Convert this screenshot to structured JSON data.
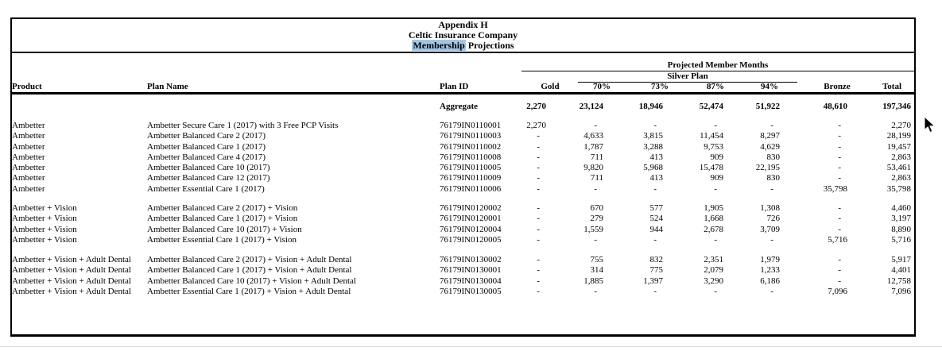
{
  "title": {
    "line1": "Appendix H",
    "line2": "Celtic Insurance Company",
    "line3_highlight": "Membership",
    "line3_rest": "Projections"
  },
  "colors": {
    "highlight": "#a4c6e4",
    "border": "#000000"
  },
  "header": {
    "projected_label": "Projected Member Months",
    "silver_label": "Silver Plan",
    "columns": [
      "Product",
      "Plan Name",
      "Plan ID",
      "Gold",
      "70%",
      "73%",
      "87%",
      "94%",
      "Bronze",
      "Total"
    ]
  },
  "aggregate": {
    "label": "Aggregate",
    "values": [
      "2,270",
      "23,124",
      "18,946",
      "52,474",
      "51,922",
      "48,610",
      "197,346"
    ]
  },
  "groups": [
    {
      "rows": [
        {
          "product": "Ambetter",
          "plan_name": "Ambetter Secure Care 1 (2017) with 3 Free PCP Visits",
          "plan_id": "76179IN0110001",
          "values": [
            "2,270",
            "-",
            "-",
            "-",
            "-",
            "-",
            "2,270"
          ]
        },
        {
          "product": "Ambetter",
          "plan_name": "Ambetter Balanced Care 2 (2017)",
          "plan_id": "76179IN0110003",
          "values": [
            "-",
            "4,633",
            "3,815",
            "11,454",
            "8,297",
            "-",
            "28,199"
          ]
        },
        {
          "product": "Ambetter",
          "plan_name": "Ambetter Balanced Care 1 (2017)",
          "plan_id": "76179IN0110002",
          "values": [
            "-",
            "1,787",
            "3,288",
            "9,753",
            "4,629",
            "-",
            "19,457"
          ]
        },
        {
          "product": "Ambetter",
          "plan_name": "Ambetter Balanced Care 4 (2017)",
          "plan_id": "76179IN0110008",
          "values": [
            "-",
            "711",
            "413",
            "909",
            "830",
            "-",
            "2,863"
          ]
        },
        {
          "product": "Ambetter",
          "plan_name": "Ambetter Balanced Care 10 (2017)",
          "plan_id": "76179IN0110005",
          "values": [
            "-",
            "9,820",
            "5,968",
            "15,478",
            "22,195",
            "-",
            "53,461"
          ]
        },
        {
          "product": "Ambetter",
          "plan_name": "Ambetter Balanced Care 12 (2017)",
          "plan_id": "76179IN0110009",
          "values": [
            "-",
            "711",
            "413",
            "909",
            "830",
            "-",
            "2,863"
          ]
        },
        {
          "product": "Ambetter",
          "plan_name": "Ambetter Essential Care 1 (2017)",
          "plan_id": "76179IN0110006",
          "values": [
            "-",
            "-",
            "-",
            "-",
            "-",
            "35,798",
            "35,798"
          ]
        }
      ]
    },
    {
      "rows": [
        {
          "product": "Ambetter + Vision",
          "plan_name": "Ambetter Balanced Care 2 (2017) + Vision",
          "plan_id": "76179IN0120002",
          "values": [
            "-",
            "670",
            "577",
            "1,905",
            "1,308",
            "-",
            "4,460"
          ]
        },
        {
          "product": "Ambetter + Vision",
          "plan_name": "Ambetter Balanced Care 1 (2017) + Vision",
          "plan_id": "76179IN0120001",
          "values": [
            "-",
            "279",
            "524",
            "1,668",
            "726",
            "-",
            "3,197"
          ]
        },
        {
          "product": "Ambetter + Vision",
          "plan_name": "Ambetter Balanced Care 10 (2017) + Vision",
          "plan_id": "76179IN0120004",
          "values": [
            "-",
            "1,559",
            "944",
            "2,678",
            "3,709",
            "-",
            "8,890"
          ]
        },
        {
          "product": "Ambetter + Vision",
          "plan_name": "Ambetter Essential Care 1 (2017) + Vision",
          "plan_id": "76179IN0120005",
          "values": [
            "-",
            "-",
            "-",
            "-",
            "-",
            "5,716",
            "5,716"
          ]
        }
      ]
    },
    {
      "rows": [
        {
          "product": "Ambetter + Vision + Adult Dental",
          "plan_name": "Ambetter Balanced Care 2 (2017) + Vision + Adult Dental",
          "plan_id": "76179IN0130002",
          "values": [
            "-",
            "755",
            "832",
            "2,351",
            "1,979",
            "-",
            "5,917"
          ]
        },
        {
          "product": "Ambetter + Vision + Adult Dental",
          "plan_name": "Ambetter Balanced Care 1 (2017) + Vision + Adult Dental",
          "plan_id": "76179IN0130001",
          "values": [
            "-",
            "314",
            "775",
            "2,079",
            "1,233",
            "-",
            "4,401"
          ]
        },
        {
          "product": "Ambetter + Vision + Adult Dental",
          "plan_name": "Ambetter Balanced Care 10 (2017) + Vision + Adult Dental",
          "plan_id": "76179IN0130004",
          "values": [
            "-",
            "1,885",
            "1,397",
            "3,290",
            "6,186",
            "-",
            "12,758"
          ]
        },
        {
          "product": "Ambetter + Vision + Adult Dental",
          "plan_name": "Ambetter Essential Care 1 (2017) + Vision + Adult Dental",
          "plan_id": "76179IN0130005",
          "values": [
            "-",
            "-",
            "-",
            "-",
            "-",
            "7,096",
            "7,096"
          ]
        }
      ]
    }
  ]
}
